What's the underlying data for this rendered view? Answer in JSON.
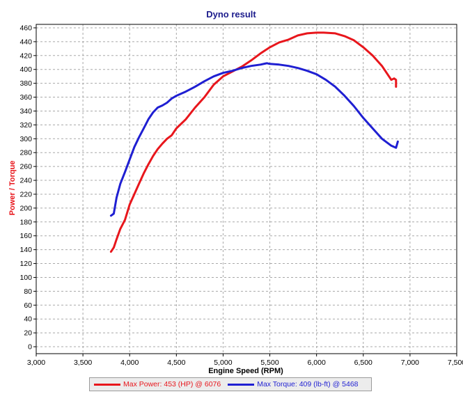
{
  "colors": {
    "power": "#e8161c",
    "torque": "#1f1fd2",
    "title": "#1c1c8c",
    "ylabel": "#e8161c",
    "grid": "#a8a8a8"
  },
  "chart_data": {
    "type": "line",
    "title": "Dyno result",
    "xlabel": "Engine Speed (RPM)",
    "ylabel": "Power / Torque",
    "xlim": [
      3000,
      7500
    ],
    "ylim": [
      -10,
      465
    ],
    "xticks": [
      3000,
      3500,
      4000,
      4500,
      5000,
      5500,
      6000,
      6500,
      7000,
      7500
    ],
    "xtick_labels": [
      "3,000",
      "3,500",
      "4,000",
      "4,500",
      "5,000",
      "5,500",
      "6,000",
      "6,500",
      "7,000",
      "7,500"
    ],
    "yticks": [
      0,
      20,
      40,
      60,
      80,
      100,
      120,
      140,
      160,
      180,
      200,
      220,
      240,
      260,
      280,
      300,
      320,
      340,
      360,
      380,
      400,
      420,
      440,
      460
    ],
    "ytick_labels": [
      "0",
      "20",
      "40",
      "60",
      "80",
      "100",
      "120",
      "140",
      "160",
      "180",
      "200",
      "220",
      "240",
      "260",
      "280",
      "300",
      "320",
      "340",
      "360",
      "380",
      "400",
      "420",
      "440",
      "460"
    ],
    "grid": true,
    "legend": "bottom",
    "series": [
      {
        "name": "Max Power: 453 (HP) @ 6076",
        "color": "#e8161c",
        "x": [
          3800,
          3830,
          3860,
          3900,
          3950,
          4000,
          4050,
          4100,
          4150,
          4200,
          4250,
          4300,
          4350,
          4400,
          4450,
          4500,
          4600,
          4700,
          4800,
          4900,
          5000,
          5100,
          5200,
          5300,
          5400,
          5500,
          5600,
          5700,
          5800,
          5900,
          6000,
          6076,
          6200,
          6300,
          6400,
          6500,
          6600,
          6700,
          6750,
          6800,
          6830,
          6850,
          6850
        ],
        "y": [
          137,
          143,
          155,
          170,
          183,
          205,
          220,
          235,
          250,
          263,
          275,
          285,
          293,
          300,
          305,
          315,
          328,
          345,
          360,
          378,
          390,
          397,
          404,
          413,
          423,
          432,
          439,
          443,
          449,
          452,
          453,
          453,
          452,
          448,
          442,
          432,
          420,
          405,
          395,
          385,
          387,
          385,
          375
        ]
      },
      {
        "name": "Max Torque: 409 (lb-ft) @ 5468",
        "color": "#1f1fd2",
        "x": [
          3800,
          3830,
          3860,
          3900,
          3950,
          4000,
          4050,
          4100,
          4150,
          4200,
          4250,
          4300,
          4350,
          4400,
          4450,
          4500,
          4600,
          4700,
          4800,
          4900,
          5000,
          5100,
          5200,
          5300,
          5400,
          5468,
          5500,
          5600,
          5700,
          5800,
          5900,
          6000,
          6100,
          6200,
          6300,
          6400,
          6500,
          6600,
          6700,
          6750,
          6800,
          6850,
          6870
        ],
        "y": [
          189,
          192,
          215,
          235,
          252,
          270,
          288,
          302,
          315,
          328,
          338,
          345,
          348,
          352,
          358,
          362,
          368,
          375,
          383,
          390,
          395,
          398,
          402,
          405,
          407,
          409,
          408,
          407,
          405,
          402,
          398,
          393,
          385,
          375,
          362,
          347,
          330,
          315,
          300,
          295,
          290,
          287,
          296
        ]
      }
    ]
  }
}
